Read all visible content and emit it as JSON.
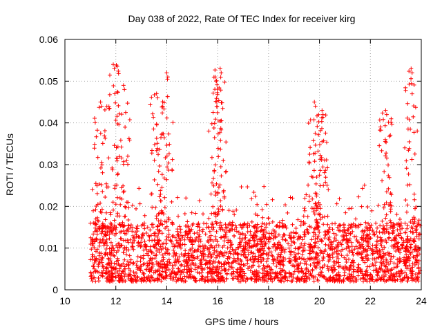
{
  "chart_data": {
    "type": "scatter",
    "title": "Day 038 of 2022, Rate Of TEC Index for receiver kirg",
    "xlabel": "GPS time / hours",
    "ylabel": "ROTI / TECUs",
    "xlim": [
      10,
      24
    ],
    "ylim": [
      0,
      0.06
    ],
    "x_ticks": [
      "10",
      "12",
      "14",
      "16",
      "18",
      "20",
      "22",
      "24"
    ],
    "y_ticks": [
      "0",
      "0.01",
      "0.02",
      "0.03",
      "0.04",
      "0.05",
      "0.06"
    ],
    "grid": true,
    "marker": "+",
    "series_color": "#ff0000",
    "x_data_start": 11.0,
    "x_data_end": 23.95,
    "baseline_range": [
      0.002,
      0.016
    ],
    "peaks": [
      {
        "x": 11.4,
        "y": 0.045
      },
      {
        "x": 11.9,
        "y": 0.054
      },
      {
        "x": 12.3,
        "y": 0.049
      },
      {
        "x": 13.6,
        "y": 0.047
      },
      {
        "x": 14.0,
        "y": 0.052
      },
      {
        "x": 15.9,
        "y": 0.051
      },
      {
        "x": 16.1,
        "y": 0.053
      },
      {
        "x": 19.8,
        "y": 0.045
      },
      {
        "x": 20.1,
        "y": 0.043
      },
      {
        "x": 22.6,
        "y": 0.043
      },
      {
        "x": 23.6,
        "y": 0.053
      }
    ]
  }
}
